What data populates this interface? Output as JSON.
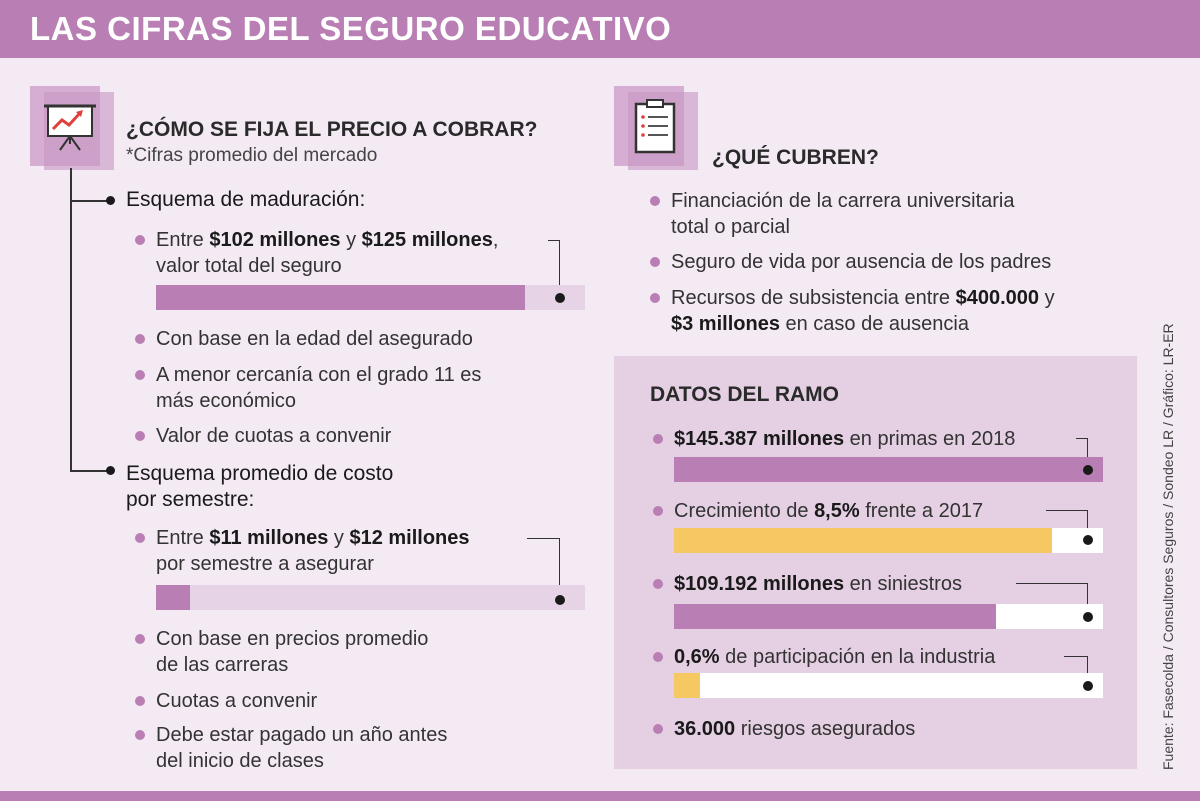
{
  "header": {
    "title": "LAS CIFRAS DEL SEGURO EDUCATIVO"
  },
  "colors": {
    "purple": "#b97fb4",
    "yellow": "#f5c862",
    "track": "#e6d4e6"
  },
  "left": {
    "icon": "chart-presentation-icon",
    "title": "¿CÓMO SE FIJA EL PRECIO A COBRAR?",
    "subtitle": "*Cifras promedio del mercado",
    "scheme1": {
      "title": "Esquema de maduración:",
      "item1": {
        "pre": "Entre ",
        "b1": "$102 millones",
        "mid": " y ",
        "b2": "$125 millones",
        "post": ",",
        "line2": "valor total del seguro",
        "fill_fraction": 0.86
      },
      "items": [
        "Con base en la edad del asegurado",
        "A menor cercanía con el grado 11 es",
        "más económico",
        "Valor de cuotas a convenir"
      ]
    },
    "scheme2": {
      "title_line1": "Esquema promedio de costo",
      "title_line2": "por semestre:",
      "item1": {
        "pre": "Entre ",
        "b1": "$11 millones",
        "mid": " y ",
        "b2": "$12 millones",
        "line2": "por semestre a asegurar",
        "fill_fraction": 0.08
      },
      "items": [
        "Con base en precios promedio",
        "de las carreras",
        "Cuotas a convenir",
        "Debe estar pagado un año antes",
        "del inicio de clases"
      ]
    }
  },
  "right": {
    "icon": "clipboard-icon",
    "title": "¿QUÉ CUBREN?",
    "items": [
      {
        "line1": "Financiación de la carrera universitaria",
        "line2": "total o parcial"
      },
      {
        "line1": "Seguro de vida por ausencia de los padres"
      },
      {
        "pre": "Recursos de subsistencia entre ",
        "b1": "$400.000",
        "post": " y",
        "b2": "$3 millones",
        "post2": " en caso de ausencia"
      }
    ]
  },
  "datos": {
    "title": "DATOS DEL RAMO",
    "items": [
      {
        "bold": "$145.387 millones",
        "rest": " en primas en 2018",
        "fill_fraction": 1.0,
        "color": "#b97fb4"
      },
      {
        "pre": "Crecimiento de ",
        "bold": "8,5%",
        "rest": " frente a 2017",
        "fill_fraction": 0.88,
        "color": "#f5c862"
      },
      {
        "bold": "$109.192 millones",
        "rest": " en siniestros",
        "fill_fraction": 0.75,
        "color": "#b97fb4"
      },
      {
        "bold": "0,6%",
        "rest": " de participación en la industria",
        "fill_fraction": 0.06,
        "color": "#f5c862"
      },
      {
        "bold": "36.000",
        "rest": " riesgos asegurados"
      }
    ]
  },
  "source": "Fuente: Fasecolda / Consultores Seguros / Sondeo LR / Gráfico: LR-ER"
}
